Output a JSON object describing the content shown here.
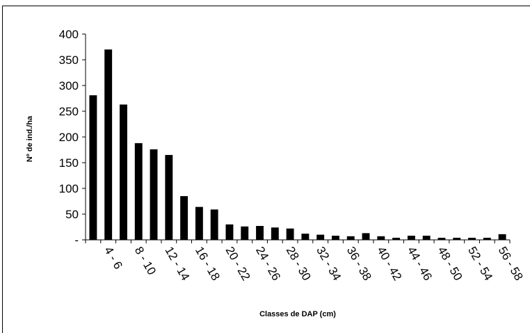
{
  "chart_data": {
    "type": "bar",
    "y_label": "Nº de ind./ha",
    "x_label": "Classes de DAP (cm)",
    "categories": [
      null,
      "4 - 6",
      null,
      "8 - 10",
      null,
      "12 - 14",
      null,
      "16 - 18",
      null,
      "20 - 22",
      null,
      "24 - 26",
      null,
      "28 - 30",
      null,
      "32 - 34",
      null,
      "36 - 38",
      null,
      "40 - 42",
      null,
      "44 - 46",
      null,
      "48 - 50",
      null,
      "52 - 54",
      null,
      "56 - 58"
    ],
    "values": [
      281,
      370,
      263,
      188,
      176,
      165,
      85,
      64,
      59,
      30,
      26,
      27,
      24,
      22,
      12,
      10,
      8,
      7,
      13,
      7,
      4,
      8,
      8,
      4,
      4,
      4,
      4,
      11
    ],
    "color": "#000000",
    "ylim": [
      0,
      400
    ],
    "yticks": [
      {
        "value": 0,
        "label": "-"
      },
      50,
      100,
      150,
      200,
      250,
      300,
      350,
      400
    ]
  }
}
